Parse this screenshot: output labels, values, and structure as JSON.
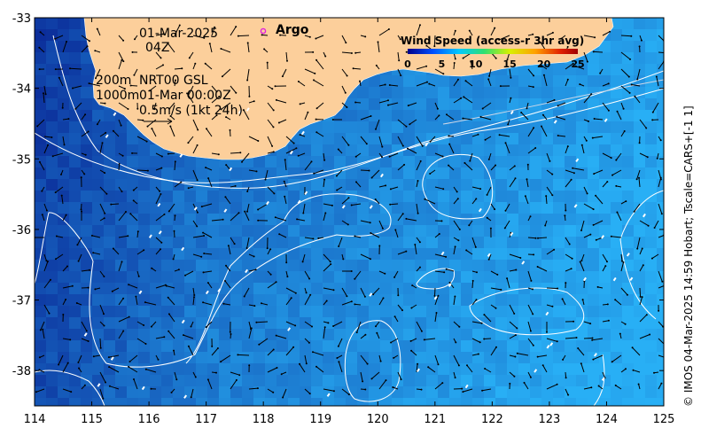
{
  "map": {
    "date": "01-Mar-2025",
    "time": "04Z",
    "depth_label_200": "200m",
    "depth_label_1000": "1000m",
    "product_label": "NRT00 GSL",
    "product_time": "01-Mar 00:00Z",
    "vector_scale_label": "0.5m/s (1kt 24h)",
    "argo_label": "Argo",
    "credit": "© IMOS 04-Mar-2025 14:59 Hobart; Tscale=CARS+[-1 1]",
    "colors": {
      "land": "#fccf9b",
      "ocean_base": "#1e63e0",
      "contour": "#ffffff",
      "argo_marker": "#e020e0"
    }
  },
  "axes": {
    "x_ticks": [
      "114",
      "115",
      "116",
      "117",
      "118",
      "119",
      "120",
      "121",
      "122",
      "123",
      "124",
      "125"
    ],
    "y_ticks": [
      "-33",
      "-34",
      "-35",
      "-36",
      "-37",
      "-38"
    ],
    "lon_range": [
      114,
      125
    ],
    "lat_range": [
      -38.5,
      -33
    ]
  },
  "legend": {
    "title": "Wind Speed (access-r 3hr avg)",
    "ticks": [
      "0",
      "5",
      "10",
      "15",
      "20",
      "25"
    ],
    "range": [
      0,
      25
    ]
  }
}
